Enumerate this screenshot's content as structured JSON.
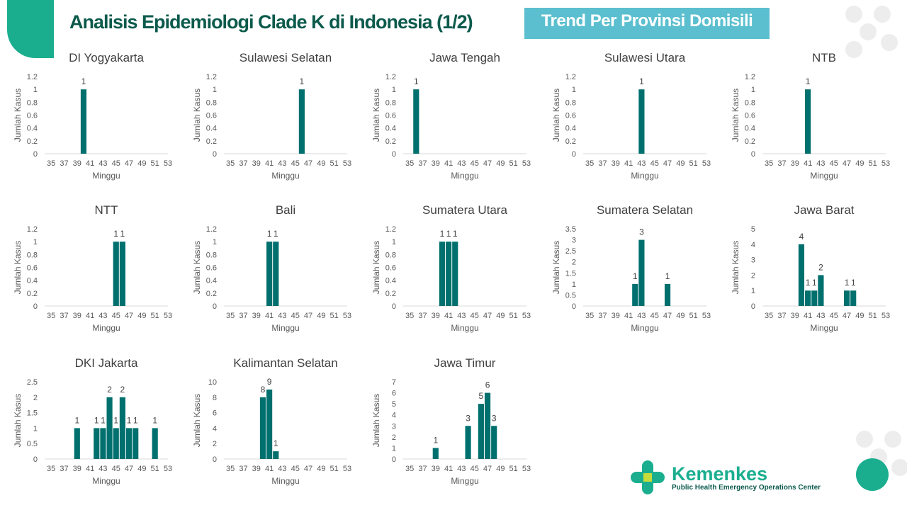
{
  "header": {
    "title": "Analisis Epidemiologi Clade K di Indonesia (1/2)",
    "badge": "Trend Per Provinsi Domisili"
  },
  "logo": {
    "name": "Kemenkes",
    "subtitle": "Public Health Emergency Operations Center"
  },
  "colors": {
    "bar": "#00706e",
    "accent": "#1aae8f",
    "badge": "#5bbfcf",
    "title": "#0b5a4c"
  },
  "chart_data": [
    {
      "type": "bar",
      "title": "DI Yogyakarta",
      "xlabel": "Minggu",
      "ylabel": "Jumlah Kasus",
      "ylim": [
        0,
        1.2
      ],
      "ystep": 0.2,
      "weeks": [
        40
      ],
      "values": [
        1
      ]
    },
    {
      "type": "bar",
      "title": "Sulawesi Selatan",
      "xlabel": "Minggu",
      "ylabel": "Jumlah Kasus",
      "ylim": [
        0,
        1.2
      ],
      "ystep": 0.2,
      "weeks": [
        46
      ],
      "values": [
        1
      ]
    },
    {
      "type": "bar",
      "title": "Jawa Tengah",
      "xlabel": "Minggu",
      "ylabel": "Jumlah Kasus",
      "ylim": [
        0,
        1.2
      ],
      "ystep": 0.2,
      "weeks": [
        36
      ],
      "values": [
        1
      ]
    },
    {
      "type": "bar",
      "title": "Sulawesi Utara",
      "xlabel": "Minggu",
      "ylabel": "Jumlah Kasus",
      "ylim": [
        0,
        1.2
      ],
      "ystep": 0.2,
      "weeks": [
        43
      ],
      "values": [
        1
      ]
    },
    {
      "type": "bar",
      "title": "NTB",
      "xlabel": "Minggu",
      "ylabel": "Jumlah Kasus",
      "ylim": [
        0,
        1.2
      ],
      "ystep": 0.2,
      "weeks": [
        41
      ],
      "values": [
        1
      ]
    },
    {
      "type": "bar",
      "title": "NTT",
      "xlabel": "Minggu",
      "ylabel": "Jumlah Kasus",
      "ylim": [
        0,
        1.2
      ],
      "ystep": 0.2,
      "weeks": [
        45,
        46
      ],
      "values": [
        1,
        1
      ]
    },
    {
      "type": "bar",
      "title": "Bali",
      "xlabel": "Minggu",
      "ylabel": "Jumlah Kasus",
      "ylim": [
        0,
        1.2
      ],
      "ystep": 0.2,
      "weeks": [
        41,
        42
      ],
      "values": [
        1,
        1
      ]
    },
    {
      "type": "bar",
      "title": "Sumatera Utara",
      "xlabel": "Minggu",
      "ylabel": "Jumlah Kasus",
      "ylim": [
        0,
        1.2
      ],
      "ystep": 0.2,
      "weeks": [
        40,
        41,
        42
      ],
      "values": [
        1,
        1,
        1
      ]
    },
    {
      "type": "bar",
      "title": "Sumatera Selatan",
      "xlabel": "Minggu",
      "ylabel": "Jumlah Kasus",
      "ylim": [
        0,
        3.5
      ],
      "ystep": 0.5,
      "weeks": [
        42,
        43,
        47
      ],
      "values": [
        1,
        3,
        1
      ]
    },
    {
      "type": "bar",
      "title": "Jawa Barat",
      "xlabel": "Minggu",
      "ylabel": "Jumlah Kasus",
      "ylim": [
        0,
        5
      ],
      "ystep": 1,
      "weeks": [
        40,
        41,
        42,
        43,
        47,
        48
      ],
      "values": [
        4,
        1,
        1,
        2,
        1,
        1
      ]
    },
    {
      "type": "bar",
      "title": "DKI Jakarta",
      "xlabel": "Minggu",
      "ylabel": "Jumlah Kasus",
      "ylim": [
        0,
        2.5
      ],
      "ystep": 0.5,
      "weeks": [
        39,
        42,
        43,
        44,
        45,
        46,
        47,
        48,
        51
      ],
      "values": [
        1,
        1,
        1,
        2,
        1,
        2,
        1,
        1,
        1
      ]
    },
    {
      "type": "bar",
      "title": "Kalimantan Selatan",
      "xlabel": "Minggu",
      "ylabel": "Jumlah Kasus",
      "ylim": [
        0,
        10
      ],
      "ystep": 2,
      "weeks": [
        40,
        41,
        42
      ],
      "values": [
        8,
        9,
        1
      ]
    },
    {
      "type": "bar",
      "title": "Jawa Timur",
      "xlabel": "Minggu",
      "ylabel": "Jumlah Kasus",
      "ylim": [
        0,
        7
      ],
      "ystep": 1,
      "weeks": [
        39,
        44,
        46,
        47,
        48
      ],
      "values": [
        1,
        3,
        5,
        6,
        3
      ]
    }
  ],
  "xaxis": {
    "min": 35,
    "max": 53,
    "tick_labels": [
      "35",
      "37",
      "39",
      "41",
      "43",
      "45",
      "47",
      "49",
      "51",
      "53"
    ]
  }
}
